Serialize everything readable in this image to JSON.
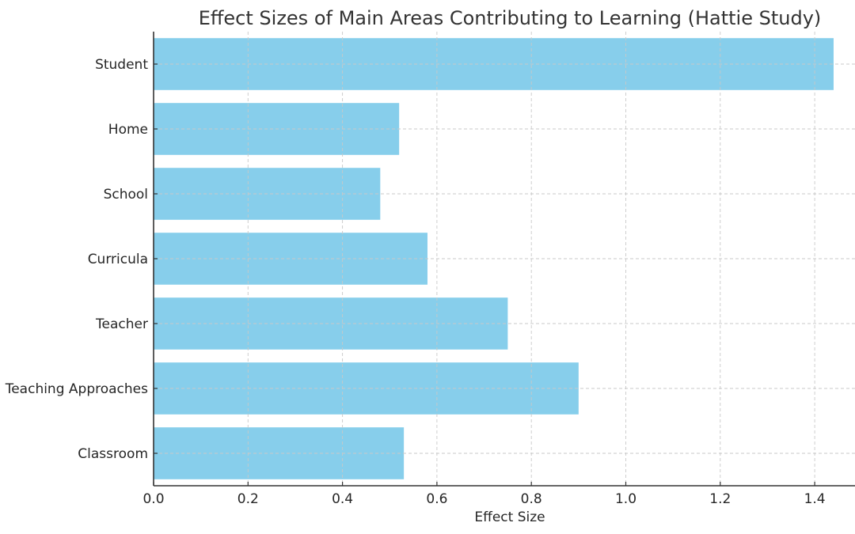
{
  "chart_data": {
    "type": "bar",
    "orientation": "horizontal",
    "title": "Effect Sizes of Main Areas Contributing to Learning (Hattie Study)",
    "xlabel": "Effect Size",
    "ylabel": "",
    "categories": [
      "Student",
      "Home",
      "School",
      "Curricula",
      "Teacher",
      "Teaching Approaches",
      "Classroom"
    ],
    "values": [
      1.44,
      0.52,
      0.48,
      0.58,
      0.75,
      0.9,
      0.53
    ],
    "xlim": [
      0,
      1.51
    ],
    "xticks": [
      "0.0",
      "0.2",
      "0.4",
      "0.6",
      "0.8",
      "1.0",
      "1.2",
      "1.4"
    ],
    "grid": true,
    "bar_color": "#87CEEB"
  }
}
